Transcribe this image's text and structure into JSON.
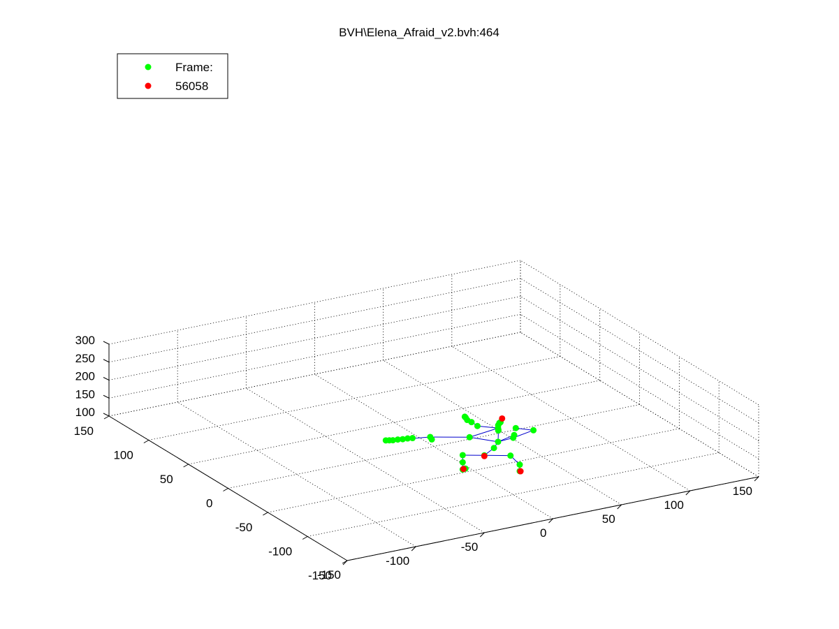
{
  "chart_data": {
    "type": "scatter",
    "projection": "3d",
    "title": "BVH\\Elena_Afraid_v2.bvh:464",
    "grid": true,
    "legend_placement": "top-left",
    "legend": [
      {
        "label": "Frame:",
        "color": "#00ff00",
        "marker": "circle"
      },
      {
        "label": "56058",
        "color": "#ff0000",
        "marker": "circle"
      }
    ],
    "axes": {
      "x": {
        "lim": [
          -150,
          150
        ],
        "ticks": [
          "-150",
          "-100",
          "-50",
          "0",
          "50",
          "100",
          "150"
        ]
      },
      "y": {
        "lim": [
          -150,
          150
        ],
        "ticks": [
          "-150",
          "-100",
          "-50",
          "0",
          "50",
          "100",
          "150"
        ]
      },
      "z": {
        "lim": [
          100,
          300
        ],
        "ticks": [
          "100",
          "150",
          "200",
          "250",
          "300"
        ]
      }
    },
    "colors": {
      "skeleton_line": "#0000cc",
      "green_marker": "#00ff00",
      "red_marker": "#ff0000"
    },
    "series": [
      {
        "name": "Frame:",
        "color": "#00ff00",
        "points": [
          {
            "id": "hips",
            "x": 5,
            "y": -55,
            "z": 145
          },
          {
            "id": "spine1",
            "x": 12,
            "y": -55,
            "z": 160
          },
          {
            "id": "spine2",
            "x": 15,
            "y": -55,
            "z": 175
          },
          {
            "id": "neck",
            "x": 17,
            "y": -52,
            "z": 202
          },
          {
            "id": "chest_r",
            "x": 25,
            "y": -58,
            "z": 190
          },
          {
            "id": "shoulder_l",
            "x": 0,
            "y": -45,
            "z": 186
          },
          {
            "id": "shoulder_r",
            "x": 22,
            "y": -62,
            "z": 190
          },
          {
            "id": "elbow_l",
            "x": -20,
            "y": -30,
            "z": 182
          },
          {
            "id": "hand_l1",
            "x": -30,
            "y": -25,
            "z": 180
          },
          {
            "id": "hand_l2",
            "x": -33,
            "y": -24,
            "z": 180
          },
          {
            "id": "hand_l3",
            "x": -36,
            "y": -23,
            "z": 179
          },
          {
            "id": "hand_l4",
            "x": -39,
            "y": -22,
            "z": 179
          },
          {
            "id": "hand_l5",
            "x": -42,
            "y": -21,
            "z": 178
          },
          {
            "id": "hand_l6",
            "x": -44,
            "y": -20,
            "z": 178
          },
          {
            "id": "hand_l7",
            "x": -46,
            "y": -19,
            "z": 178
          },
          {
            "id": "elbow_r",
            "x": 35,
            "y": -65,
            "z": 205
          },
          {
            "id": "wrist_r",
            "x": 15,
            "y": -55,
            "z": 213
          },
          {
            "id": "hand_r1",
            "x": 4,
            "y": -48,
            "z": 218
          },
          {
            "id": "hand_r2",
            "x": 2,
            "y": -44,
            "z": 225
          },
          {
            "id": "hand_r3",
            "x": 0,
            "y": -42,
            "z": 230
          },
          {
            "id": "hand_r4",
            "x": 0,
            "y": -40,
            "z": 234
          },
          {
            "id": "hand_r5",
            "x": 0,
            "y": -39,
            "z": 235
          },
          {
            "id": "head1",
            "x": 18,
            "y": -50,
            "z": 212
          },
          {
            "id": "head2",
            "x": 20,
            "y": -48,
            "z": 214
          },
          {
            "id": "head3",
            "x": 22,
            "y": -46,
            "z": 212
          },
          {
            "id": "head4",
            "x": 25,
            "y": -60,
            "z": 212
          },
          {
            "id": "face1",
            "x": 14,
            "y": -57,
            "z": 210
          },
          {
            "id": "hip_l",
            "x": -5,
            "y": -45,
            "z": 140
          },
          {
            "id": "hip_r",
            "x": 20,
            "y": -62,
            "z": 142
          },
          {
            "id": "knee_l",
            "x": -5,
            "y": -45,
            "z": 120
          },
          {
            "id": "knee_r",
            "x": 25,
            "y": -65,
            "z": 117
          },
          {
            "id": "foot_l",
            "x": -5,
            "y": -45,
            "z": 100
          },
          {
            "id": "foot_r",
            "x": 25,
            "y": -65,
            "z": 99
          },
          {
            "id": "upper_l",
            "x": -20,
            "y": -32,
            "z": 178
          },
          {
            "id": "ankle_l2",
            "x": -3,
            "y": -45,
            "z": 101
          }
        ]
      },
      {
        "name": "56058",
        "color": "#ff0000",
        "points": [
          {
            "id": "head_top",
            "x": 22,
            "y": -48,
            "z": 225
          },
          {
            "id": "root",
            "x": 5,
            "y": -55,
            "z": 143
          },
          {
            "id": "ankle_l",
            "x": -5,
            "y": -46,
            "z": 103
          },
          {
            "id": "ankle_r",
            "x": 25,
            "y": -66,
            "z": 100
          }
        ]
      }
    ],
    "bones": [
      [
        "hips",
        "spine1"
      ],
      [
        "spine1",
        "spine2"
      ],
      [
        "spine2",
        "chest_r"
      ],
      [
        "spine2",
        "shoulder_l"
      ],
      [
        "shoulder_l",
        "elbow_l"
      ],
      [
        "elbow_l",
        "hand_l7"
      ],
      [
        "spine2",
        "shoulder_r"
      ],
      [
        "shoulder_r",
        "elbow_r"
      ],
      [
        "elbow_r",
        "head4"
      ],
      [
        "shoulder_l",
        "wrist_r"
      ],
      [
        "wrist_r",
        "hand_r1"
      ],
      [
        "hand_r1",
        "hand_r5"
      ],
      [
        "spine2",
        "neck"
      ],
      [
        "neck",
        "head1"
      ],
      [
        "head1",
        "face1"
      ],
      [
        "hips",
        "hip_l"
      ],
      [
        "hips",
        "hip_r"
      ],
      [
        "hip_l",
        "knee_l"
      ],
      [
        "knee_l",
        "foot_l"
      ],
      [
        "hip_r",
        "knee_r"
      ],
      [
        "knee_r",
        "foot_r"
      ]
    ]
  }
}
